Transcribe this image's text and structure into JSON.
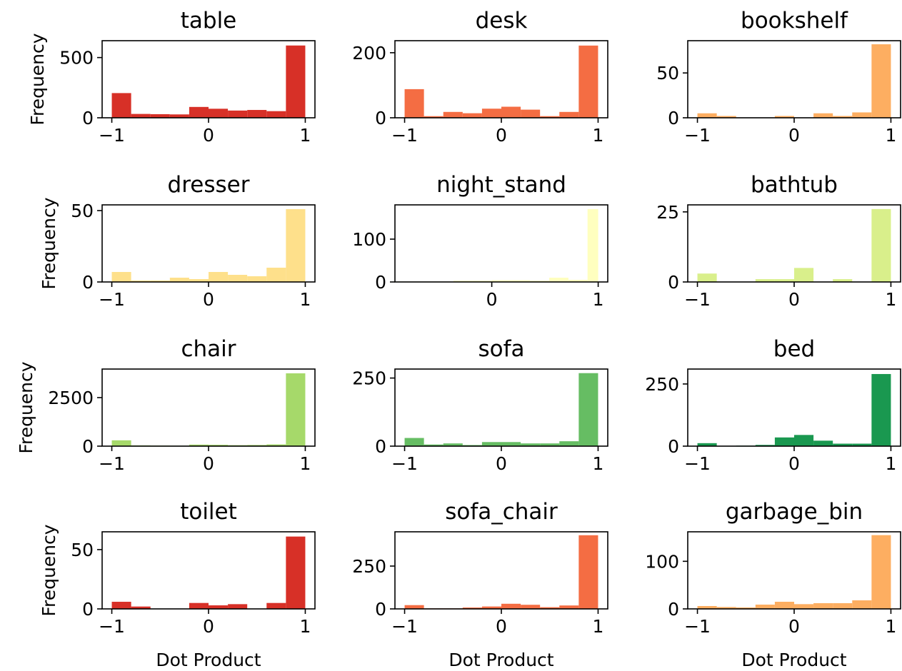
{
  "figure": {
    "shared_xlabel": "Dot Product",
    "shared_ylabel": "Frequency"
  },
  "chart_data": [
    {
      "type": "bar",
      "title": "table",
      "color": "#d73027",
      "xlabel": "",
      "ylabel": "Frequency",
      "bin_edges": [
        -1,
        -0.8,
        -0.6,
        -0.4,
        -0.2,
        0,
        0.2,
        0.4,
        0.6,
        0.8,
        1
      ],
      "values": [
        205,
        32,
        30,
        28,
        90,
        75,
        60,
        65,
        55,
        600
      ],
      "xlim": [
        -1.1,
        1.1
      ],
      "ylim": [
        0,
        640
      ],
      "xticks": [
        -1,
        0,
        1
      ],
      "xtick_labels": [
        "−1",
        "0",
        "1"
      ],
      "yticks": [
        0,
        500
      ],
      "ytick_labels": [
        "0",
        "500"
      ]
    },
    {
      "type": "bar",
      "title": "desk",
      "color": "#f46d43",
      "xlabel": "",
      "ylabel": "",
      "bin_edges": [
        -1,
        -0.8,
        -0.6,
        -0.4,
        -0.2,
        0,
        0.2,
        0.4,
        0.6,
        0.8,
        1
      ],
      "values": [
        88,
        5,
        18,
        14,
        28,
        34,
        25,
        5,
        18,
        222
      ],
      "xlim": [
        -1.1,
        1.1
      ],
      "ylim": [
        0,
        237
      ],
      "xticks": [
        -1,
        0,
        1
      ],
      "xtick_labels": [
        "−1",
        "0",
        "1"
      ],
      "yticks": [
        0,
        200
      ],
      "ytick_labels": [
        "0",
        "200"
      ]
    },
    {
      "type": "bar",
      "title": "bookshelf",
      "color": "#fdae61",
      "xlabel": "",
      "ylabel": "",
      "bin_edges": [
        -1,
        -0.8,
        -0.6,
        -0.4,
        -0.2,
        0,
        0.2,
        0.4,
        0.6,
        0.8,
        1
      ],
      "values": [
        5,
        2,
        0,
        0,
        2,
        0,
        5,
        2,
        6,
        82
      ],
      "xlim": [
        -1.1,
        1.1
      ],
      "ylim": [
        0,
        86
      ],
      "xticks": [
        -1,
        0,
        1
      ],
      "xtick_labels": [
        "−1",
        "0",
        "1"
      ],
      "yticks": [
        0,
        50
      ],
      "ytick_labels": [
        "0",
        "50"
      ]
    },
    {
      "type": "bar",
      "title": "dresser",
      "color": "#fee08b",
      "xlabel": "",
      "ylabel": "Frequency",
      "bin_edges": [
        -1,
        -0.8,
        -0.6,
        -0.4,
        -0.2,
        0,
        0.2,
        0.4,
        0.6,
        0.8,
        1
      ],
      "values": [
        7,
        1,
        1,
        3,
        2,
        7,
        5,
        4,
        10,
        51
      ],
      "xlim": [
        -1.1,
        1.1
      ],
      "ylim": [
        0,
        54
      ],
      "xticks": [
        -1,
        0,
        1
      ],
      "xtick_labels": [
        "−1",
        "0",
        "1"
      ],
      "yticks": [
        0,
        50
      ],
      "ytick_labels": [
        "0",
        "50"
      ]
    },
    {
      "type": "bar",
      "title": "night_stand",
      "color": "#ffffbf",
      "xlabel": "",
      "ylabel": "",
      "bin_edges": [
        -0.9,
        -0.72,
        -0.54,
        -0.36,
        -0.18,
        0,
        0.18,
        0.36,
        0.54,
        0.72,
        0.9,
        1
      ],
      "values": [
        1,
        1,
        1,
        3,
        3,
        4,
        4,
        3,
        10,
        5,
        170
      ],
      "xlim": [
        -0.91,
        1.09
      ],
      "ylim": [
        0,
        180
      ],
      "xticks": [
        0,
        1
      ],
      "xtick_labels": [
        "0",
        "1"
      ],
      "yticks": [
        0,
        100
      ],
      "ytick_labels": [
        "0",
        "100"
      ]
    },
    {
      "type": "bar",
      "title": "bathtub",
      "color": "#d9ef8b",
      "xlabel": "",
      "ylabel": "",
      "bin_edges": [
        -1,
        -0.8,
        -0.6,
        -0.4,
        -0.2,
        0,
        0.2,
        0.4,
        0.6,
        0.8,
        1
      ],
      "values": [
        3,
        0,
        0,
        1,
        1,
        5,
        0,
        1,
        0,
        26
      ],
      "xlim": [
        -1.1,
        1.1
      ],
      "ylim": [
        0,
        27.5
      ],
      "xticks": [
        -1,
        0,
        1
      ],
      "xtick_labels": [
        "−1",
        "0",
        "1"
      ],
      "yticks": [
        0,
        25
      ],
      "ytick_labels": [
        "0",
        "25"
      ]
    },
    {
      "type": "bar",
      "title": "chair",
      "color": "#a6d96a",
      "xlabel": "",
      "ylabel": "Frequency",
      "bin_edges": [
        -1,
        -0.8,
        -0.6,
        -0.4,
        -0.2,
        0,
        0.2,
        0.4,
        0.6,
        0.8,
        1
      ],
      "values": [
        300,
        40,
        30,
        25,
        80,
        70,
        50,
        60,
        90,
        3750
      ],
      "xlim": [
        -1.1,
        1.1
      ],
      "ylim": [
        0,
        3970
      ],
      "xticks": [
        -1,
        0,
        1
      ],
      "xtick_labels": [
        "−1",
        "0",
        "1"
      ],
      "yticks": [
        0,
        2500
      ],
      "ytick_labels": [
        "0",
        "2500"
      ]
    },
    {
      "type": "bar",
      "title": "sofa",
      "color": "#66bd63",
      "xlabel": "",
      "ylabel": "",
      "bin_edges": [
        -1,
        -0.8,
        -0.6,
        -0.4,
        -0.2,
        0,
        0.2,
        0.4,
        0.6,
        0.8,
        1
      ],
      "values": [
        30,
        6,
        10,
        4,
        15,
        15,
        10,
        10,
        18,
        268
      ],
      "xlim": [
        -1.1,
        1.1
      ],
      "ylim": [
        0,
        283
      ],
      "xticks": [
        -1,
        0,
        1
      ],
      "xtick_labels": [
        "−1",
        "0",
        "1"
      ],
      "yticks": [
        0,
        250
      ],
      "ytick_labels": [
        "0",
        "250"
      ]
    },
    {
      "type": "bar",
      "title": "bed",
      "color": "#1a9850",
      "xlabel": "",
      "ylabel": "",
      "bin_edges": [
        -1,
        -0.8,
        -0.6,
        -0.4,
        -0.2,
        0,
        0.2,
        0.4,
        0.6,
        0.8,
        1
      ],
      "values": [
        12,
        0,
        2,
        5,
        35,
        45,
        22,
        10,
        10,
        290
      ],
      "xlim": [
        -1.1,
        1.1
      ],
      "ylim": [
        0,
        310
      ],
      "xticks": [
        -1,
        0,
        1
      ],
      "xtick_labels": [
        "−1",
        "0",
        "1"
      ],
      "yticks": [
        0,
        250
      ],
      "ytick_labels": [
        "0",
        "250"
      ]
    },
    {
      "type": "bar",
      "title": "toilet",
      "color": "#d73027",
      "xlabel": "Dot Product",
      "ylabel": "Frequency",
      "bin_edges": [
        -1,
        -0.8,
        -0.6,
        -0.4,
        -0.2,
        0,
        0.2,
        0.4,
        0.6,
        0.8,
        1
      ],
      "values": [
        6,
        2,
        0,
        0,
        5,
        3,
        4,
        0,
        5,
        61
      ],
      "xlim": [
        -1.1,
        1.1
      ],
      "ylim": [
        0,
        65
      ],
      "xticks": [
        -1,
        0,
        1
      ],
      "xtick_labels": [
        "−1",
        "0",
        "1"
      ],
      "yticks": [
        0,
        50
      ],
      "ytick_labels": [
        "0",
        "50"
      ]
    },
    {
      "type": "bar",
      "title": "sofa_chair",
      "color": "#f46d43",
      "xlabel": "Dot Product",
      "ylabel": "",
      "bin_edges": [
        -1,
        -0.8,
        -0.6,
        -0.4,
        -0.2,
        0,
        0.2,
        0.4,
        0.6,
        0.8,
        1
      ],
      "values": [
        22,
        3,
        3,
        8,
        14,
        30,
        24,
        10,
        20,
        430
      ],
      "xlim": [
        -1.1,
        1.1
      ],
      "ylim": [
        0,
        450
      ],
      "xticks": [
        -1,
        0,
        1
      ],
      "xtick_labels": [
        "−1",
        "0",
        "1"
      ],
      "yticks": [
        0,
        250
      ],
      "ytick_labels": [
        "0",
        "250"
      ]
    },
    {
      "type": "bar",
      "title": "garbage_bin",
      "color": "#fdae61",
      "xlabel": "Dot Product",
      "ylabel": "",
      "bin_edges": [
        -1,
        -0.8,
        -0.6,
        -0.4,
        -0.2,
        0,
        0.2,
        0.4,
        0.6,
        0.8,
        1
      ],
      "values": [
        6,
        4,
        3,
        9,
        15,
        10,
        12,
        12,
        18,
        155
      ],
      "xlim": [
        -1.1,
        1.1
      ],
      "ylim": [
        0,
        162
      ],
      "xticks": [
        -1,
        0,
        1
      ],
      "xtick_labels": [
        "−1",
        "0",
        "1"
      ],
      "yticks": [
        0,
        100
      ],
      "ytick_labels": [
        "0",
        "100"
      ]
    }
  ]
}
